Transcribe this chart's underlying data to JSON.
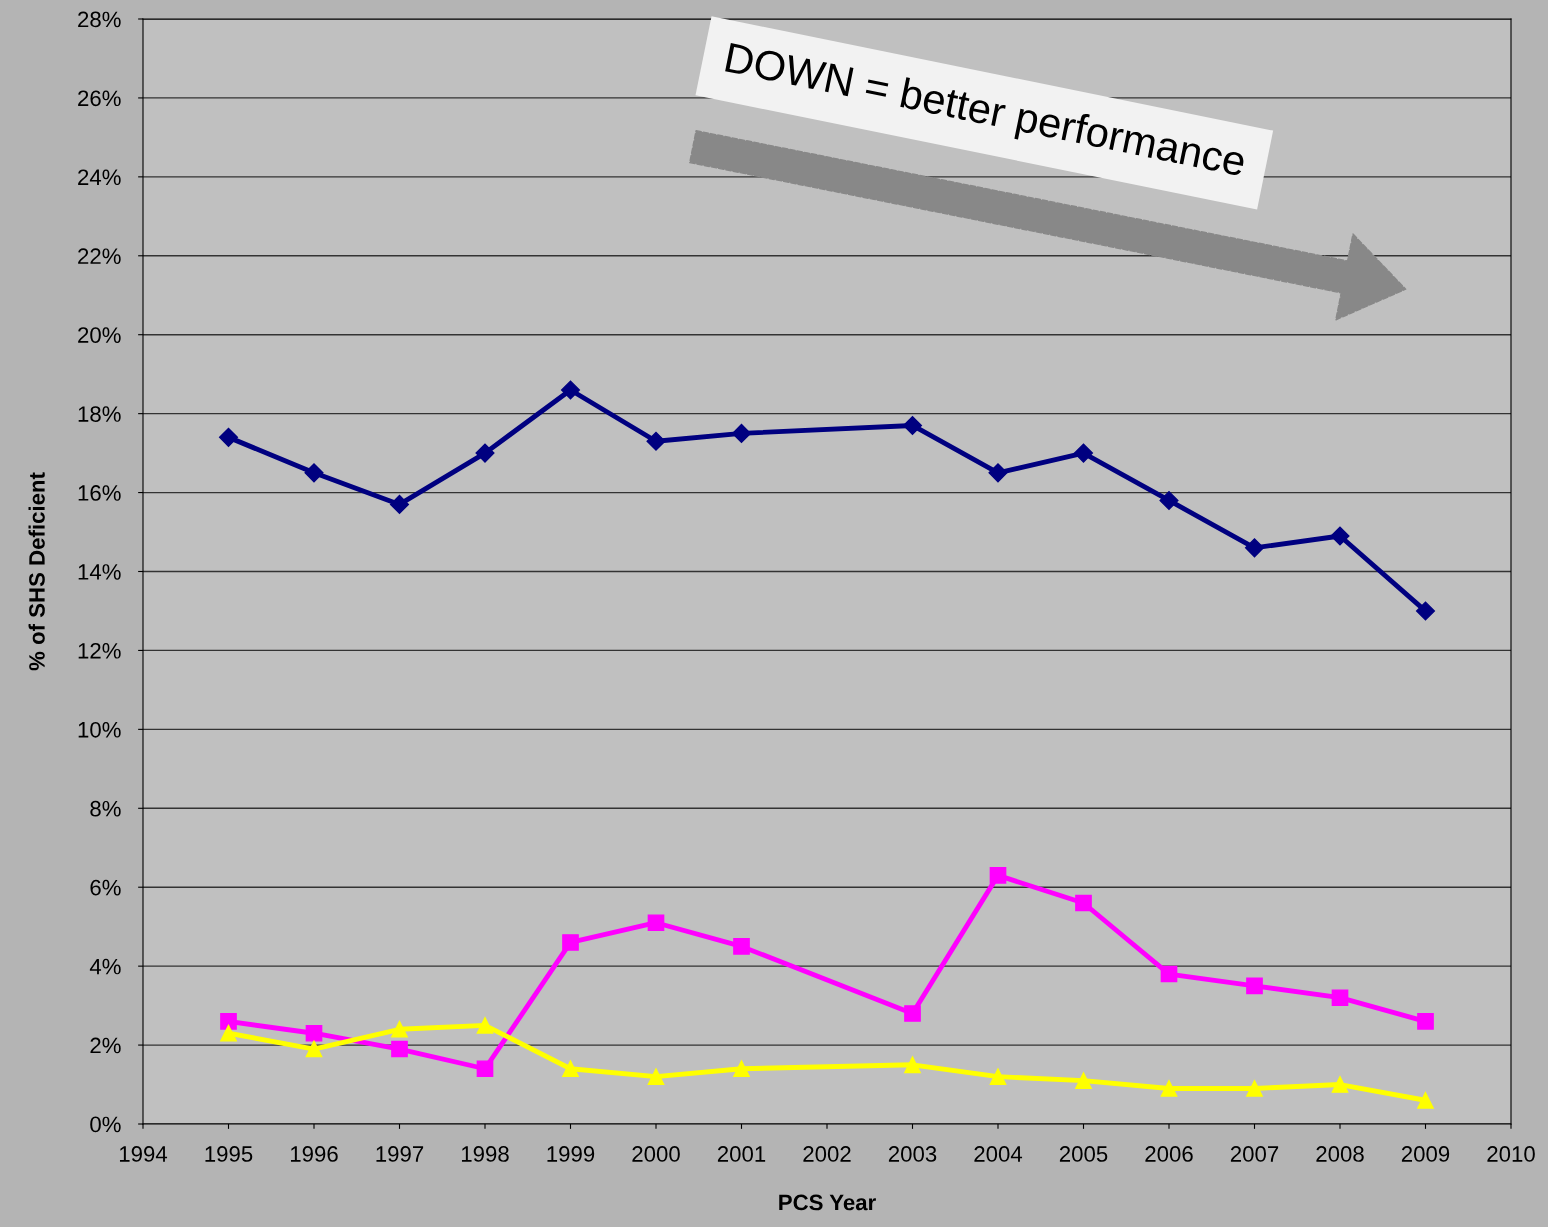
{
  "chart_data": {
    "type": "line",
    "xlabel": "PCS Year",
    "ylabel": "% of SHS Deficient",
    "xlim": [
      1994,
      2010
    ],
    "xticks": [
      1994,
      1995,
      1996,
      1997,
      1998,
      1999,
      2000,
      2001,
      2002,
      2003,
      2004,
      2005,
      2006,
      2007,
      2008,
      2009,
      2010
    ],
    "ylim": [
      0,
      28
    ],
    "yticks": [
      {
        "value": 0,
        "label": "0%"
      },
      {
        "value": 2,
        "label": "2%"
      },
      {
        "value": 4,
        "label": "4%"
      },
      {
        "value": 6,
        "label": "6%"
      },
      {
        "value": 8,
        "label": "8%"
      },
      {
        "value": 10,
        "label": "10%"
      },
      {
        "value": 12,
        "label": "12%"
      },
      {
        "value": 14,
        "label": "14%"
      },
      {
        "value": 16,
        "label": "16%"
      },
      {
        "value": 18,
        "label": "18%"
      },
      {
        "value": 20,
        "label": "20%"
      },
      {
        "value": 22,
        "label": "22%"
      },
      {
        "value": 24,
        "label": "24%"
      },
      {
        "value": 26,
        "label": "26%"
      },
      {
        "value": 28,
        "label": "28%"
      }
    ],
    "x": [
      1995,
      1996,
      1997,
      1998,
      1999,
      2000,
      2001,
      2003,
      2004,
      2005,
      2006,
      2007,
      2008,
      2009
    ],
    "grid": "y",
    "legend": false,
    "line_style": "solid",
    "annotations": [
      "DOWN = better performance"
    ],
    "series": [
      {
        "color": "#000080",
        "marker": "diamond",
        "values": [
          17.4,
          16.5,
          15.7,
          17.0,
          18.6,
          17.3,
          17.5,
          17.7,
          16.5,
          17.0,
          15.8,
          14.6,
          14.9,
          13.0
        ]
      },
      {
        "color": "#ff00ff",
        "marker": "square",
        "values": [
          2.6,
          2.3,
          1.9,
          1.4,
          4.6,
          5.1,
          4.5,
          2.8,
          6.3,
          5.6,
          3.8,
          3.5,
          3.2,
          2.6
        ]
      },
      {
        "color": "#ffff00",
        "marker": "triangle",
        "values": [
          2.3,
          1.9,
          2.4,
          2.5,
          1.4,
          1.2,
          1.4,
          1.5,
          1.2,
          1.1,
          0.9,
          0.9,
          1.0,
          0.6
        ]
      }
    ]
  }
}
